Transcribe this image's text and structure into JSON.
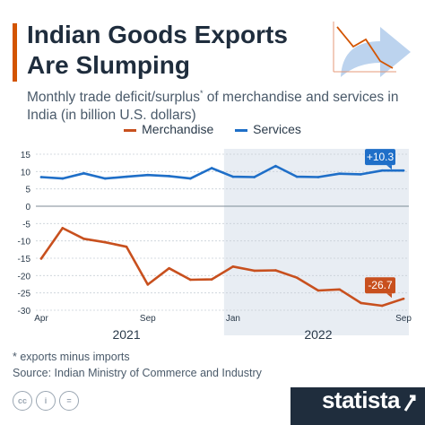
{
  "header": {
    "title_line1": "Indian Goods Exports",
    "title_line2": "Are Slumping",
    "subtitle_part1": "Monthly trade deficit/surplus",
    "subtitle_sup": "*",
    "subtitle_part2": " of merchandise and services in India (in billion U.S. dollars)",
    "accent_color": "#d35400"
  },
  "legend": {
    "items": [
      {
        "label": "Merchandise",
        "color": "#c8501e"
      },
      {
        "label": "Services",
        "color": "#1f6fc8"
      }
    ]
  },
  "chart_data": {
    "type": "line",
    "x": [
      "2021-04",
      "2021-05",
      "2021-06",
      "2021-07",
      "2021-08",
      "2021-09",
      "2021-10",
      "2021-11",
      "2021-12",
      "2022-01",
      "2022-02",
      "2022-03",
      "2022-04",
      "2022-05",
      "2022-06",
      "2022-07",
      "2022-08",
      "2022-09"
    ],
    "x_tick_labels": [
      {
        "label": "Apr",
        "at": "2021-04"
      },
      {
        "label": "Sep",
        "at": "2021-09"
      },
      {
        "label": "Jan",
        "at": "2022-01"
      },
      {
        "label": "Sep",
        "at": "2022-09"
      }
    ],
    "year_labels": [
      {
        "label": "2021",
        "from": "2021-04",
        "to": "2021-12"
      },
      {
        "label": "2022",
        "from": "2022-01",
        "to": "2022-09"
      }
    ],
    "y_ticks": [
      "15",
      "10",
      "5",
      "0",
      "-5",
      "-10",
      "-15",
      "-20",
      "-25",
      "-30"
    ],
    "ylim": [
      -30,
      15
    ],
    "grid": true,
    "shaded_region": {
      "from": "2022-01",
      "to": "2022-09",
      "color": "#e8edf3"
    },
    "series": [
      {
        "name": "Merchandise",
        "color": "#c8501e",
        "values": [
          -15.1,
          -6.3,
          -9.4,
          -10.4,
          -11.7,
          -22.6,
          -17.9,
          -21.2,
          -21.1,
          -17.4,
          -18.6,
          -18.5,
          -20.6,
          -24.3,
          -24.0,
          -27.9,
          -28.7,
          -26.7
        ],
        "end_label": "-26.7"
      },
      {
        "name": "Services",
        "color": "#1f6fc8",
        "values": [
          8.4,
          8.0,
          9.5,
          8.0,
          8.5,
          9.0,
          8.7,
          8.0,
          11.0,
          8.5,
          8.4,
          11.6,
          8.5,
          8.4,
          9.4,
          9.2,
          10.3,
          10.3
        ],
        "end_label": "+10.3"
      }
    ]
  },
  "footer": {
    "footnote": "* exports minus imports",
    "source": "Source: Indian Ministry of Commerce and Industry",
    "license_icons": [
      {
        "name": "cc-icon",
        "glyph": "cc"
      },
      {
        "name": "attribution-icon",
        "glyph": "i"
      },
      {
        "name": "no-derivatives-icon",
        "glyph": "="
      }
    ],
    "brand": "statista",
    "brand_color": "#1f2d3d"
  }
}
